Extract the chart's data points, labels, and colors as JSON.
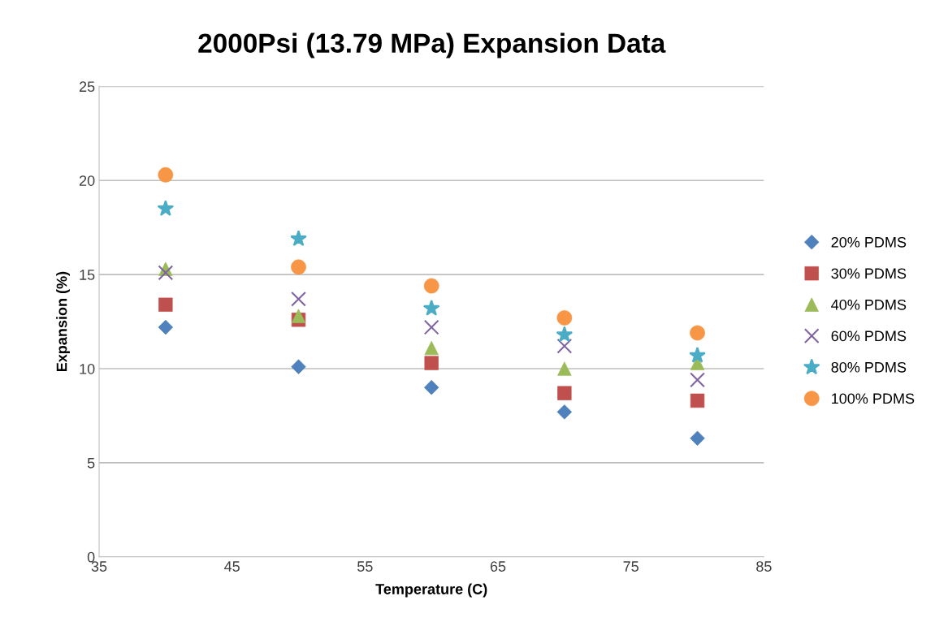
{
  "chart_data": {
    "type": "scatter",
    "title": "2000Psi (13.79 MPa) Expansion Data",
    "xlabel": "Temperature (C)",
    "ylabel": "Expansion (%)",
    "x": [
      40,
      50,
      60,
      70,
      80
    ],
    "series": [
      {
        "name": "20% PDMS",
        "color": "#4f81bd",
        "marker": "diamond",
        "values": [
          12.2,
          10.1,
          9.0,
          7.7,
          6.3
        ]
      },
      {
        "name": "30% PDMS",
        "color": "#c0504d",
        "marker": "square",
        "values": [
          13.4,
          12.6,
          10.3,
          8.7,
          8.3
        ]
      },
      {
        "name": "40% PDMS",
        "color": "#9bbb59",
        "marker": "triangle",
        "values": [
          15.3,
          12.8,
          11.1,
          10.0,
          10.3
        ]
      },
      {
        "name": "60% PDMS",
        "color": "#8064a2",
        "marker": "cross",
        "values": [
          15.1,
          13.7,
          12.2,
          11.2,
          9.4
        ]
      },
      {
        "name": "80% PDMS",
        "color": "#4bacc6",
        "marker": "star",
        "values": [
          18.5,
          16.9,
          13.2,
          11.8,
          10.7
        ]
      },
      {
        "name": "100% PDMS",
        "color": "#f79646",
        "marker": "circle",
        "values": [
          20.3,
          15.4,
          14.4,
          12.7,
          11.9
        ]
      }
    ],
    "xlim": [
      35,
      85
    ],
    "xticks": [
      35,
      45,
      55,
      65,
      75,
      85
    ],
    "ylim": [
      0,
      25
    ],
    "yticks": [
      0,
      5,
      10,
      15,
      20,
      25
    ],
    "grid": "y",
    "legend": "right"
  }
}
